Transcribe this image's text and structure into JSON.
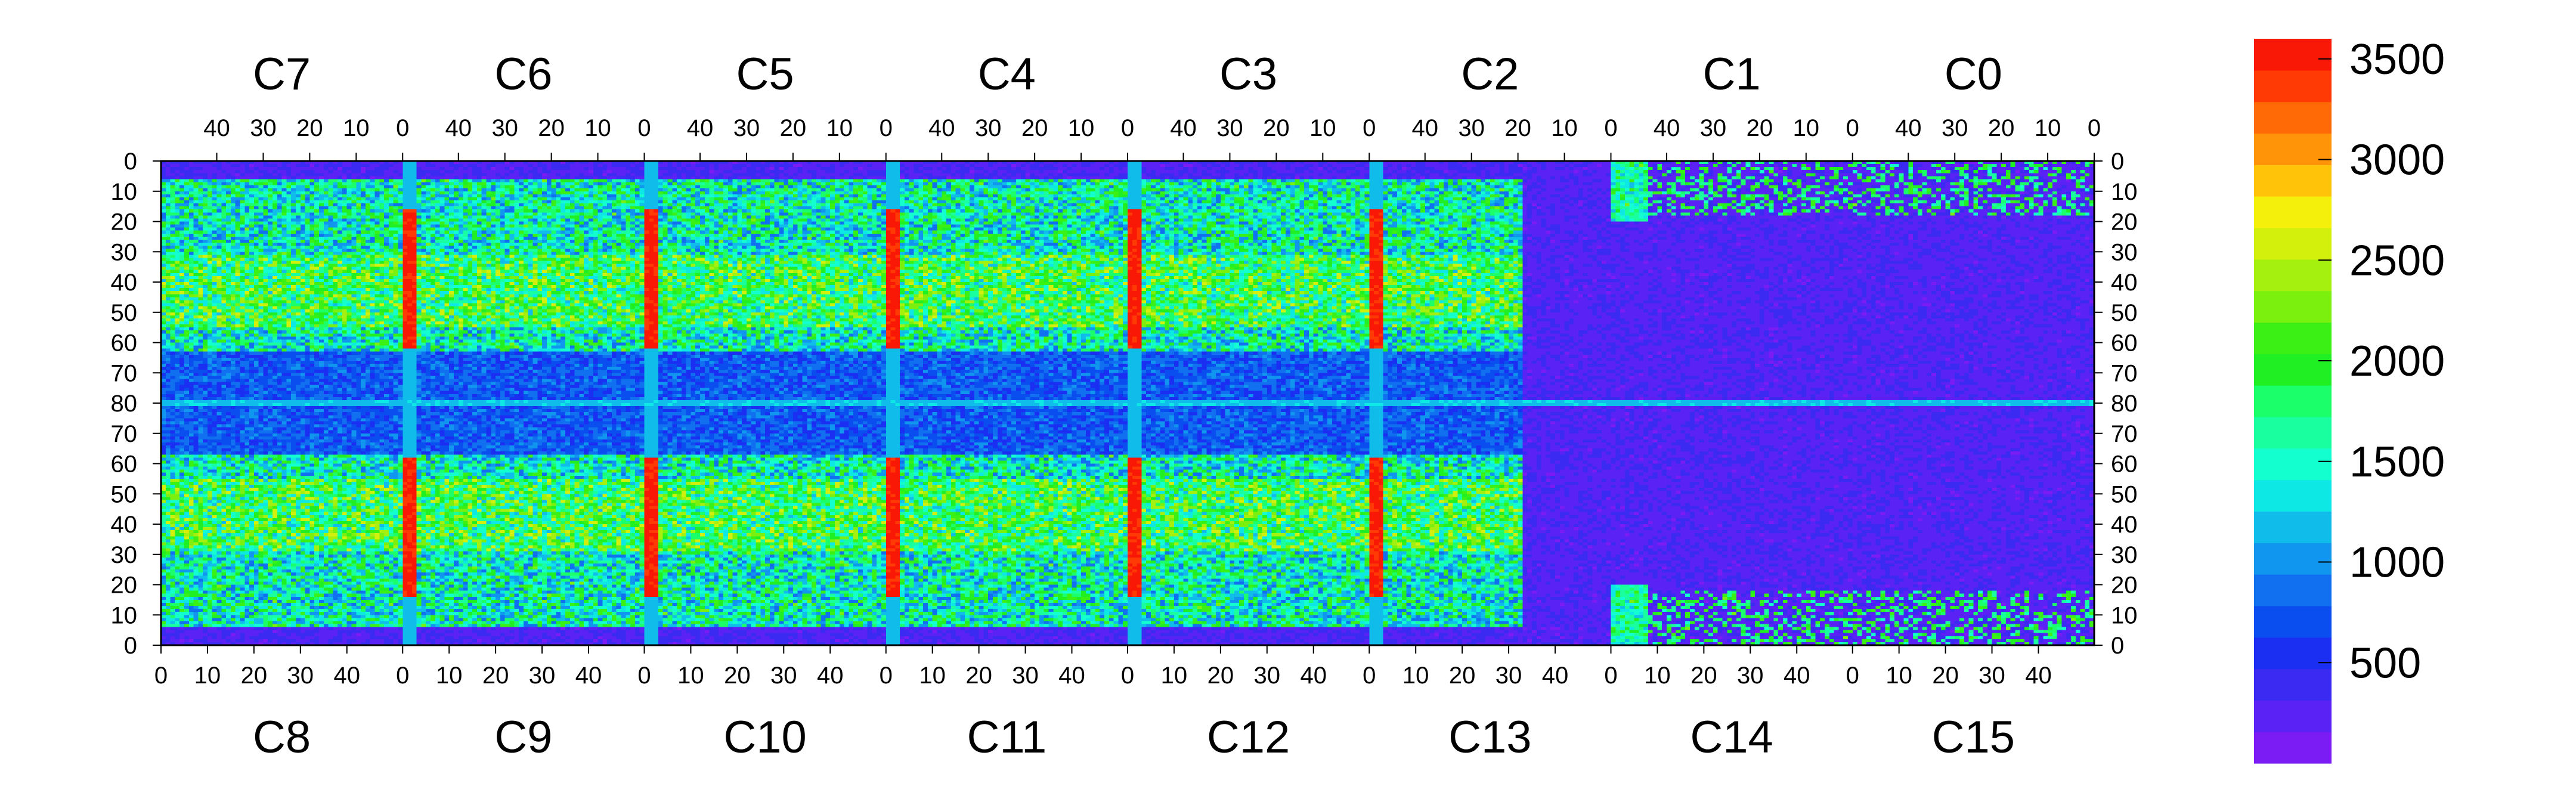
{
  "chart_data": {
    "type": "heatmap",
    "title": "",
    "xlabel": "",
    "ylabel": "",
    "top_chips": [
      "C7",
      "C6",
      "C5",
      "C4",
      "C3",
      "C2",
      "C1",
      "C0"
    ],
    "bottom_chips": [
      "C8",
      "C9",
      "C10",
      "C11",
      "C12",
      "C13",
      "C14",
      "C15"
    ],
    "top_tick_labels": [
      "40",
      "30",
      "20",
      "10",
      "0"
    ],
    "bottom_tick_labels": [
      "0",
      "10",
      "20",
      "30",
      "40"
    ],
    "y_tick_labels": [
      "0",
      "10",
      "20",
      "30",
      "40",
      "50",
      "60",
      "70",
      "80",
      "70",
      "60",
      "50",
      "40",
      "30",
      "20",
      "10",
      "0"
    ],
    "colorbar": {
      "ticks": [
        500,
        1000,
        1500,
        2000,
        2500,
        3000,
        3500
      ],
      "labels": [
        "500",
        "1000",
        "1500",
        "2000",
        "2500",
        "3000",
        "3500"
      ],
      "range": [
        0,
        3600
      ],
      "colors": [
        "#7b1cf5",
        "#5a22f5",
        "#3a2af2",
        "#1b2ff2",
        "#0b4ef0",
        "#1170f0",
        "#1096ef",
        "#10bcea",
        "#0ee8e5",
        "#14ffd0",
        "#19ffa0",
        "#1aff6a",
        "#20f023",
        "#3af015",
        "#7bf00f",
        "#a6f00f",
        "#d3f00d",
        "#f4f00c",
        "#ffc40a",
        "#ff9408",
        "#ff6a06",
        "#ff3a05",
        "#f81805"
      ]
    },
    "grid": false,
    "chips_per_row": 8,
    "columns_per_chip": 52,
    "rows_per_half": 80,
    "typical_level": 1500,
    "background_level": 150,
    "hot_column_level": 3400
  }
}
